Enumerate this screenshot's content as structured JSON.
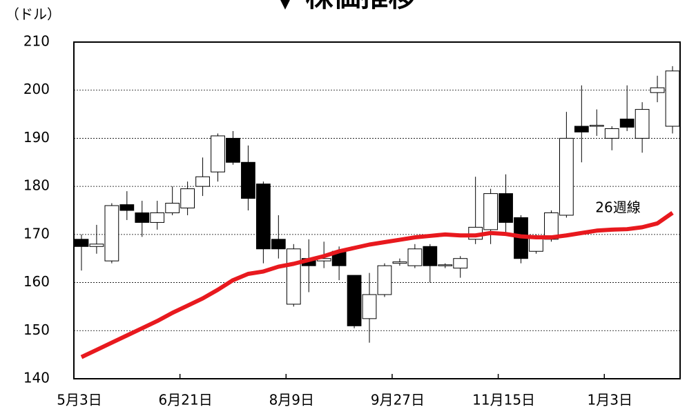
{
  "chart_data": {
    "type": "candlestick",
    "title": "▼ 株価推移",
    "y_label": "（ドル）",
    "categories": [
      "5月3日",
      null,
      null,
      null,
      null,
      null,
      null,
      "6月21日",
      null,
      null,
      null,
      null,
      null,
      null,
      "8月9日",
      null,
      null,
      null,
      null,
      null,
      null,
      "9月27日",
      null,
      null,
      null,
      null,
      null,
      null,
      "11月15日",
      null,
      null,
      null,
      null,
      null,
      null,
      "1月3日",
      null,
      null,
      null,
      null
    ],
    "open": [
      169,
      167.5,
      164.5,
      176.2,
      174.5,
      172.5,
      174.5,
      175.5,
      180,
      183,
      190,
      185,
      180.5,
      169,
      155.5,
      165,
      164.5,
      166.5,
      161.5,
      152.5,
      157.5,
      164,
      163.5,
      167.5,
      163.5,
      163,
      169,
      171,
      178.5,
      173.5,
      166.5,
      169,
      174,
      192.5,
      192.5,
      190,
      194,
      190,
      199.5,
      192.5
    ],
    "high": [
      170,
      172,
      176.5,
      179,
      177,
      177,
      180,
      181,
      186,
      191,
      191.5,
      188.5,
      181,
      174,
      168,
      169,
      168.5,
      167.5,
      161.5,
      162,
      164,
      165,
      168,
      168,
      164,
      165.5,
      182,
      179.5,
      182.5,
      174,
      170,
      175,
      195.5,
      201,
      196,
      192.5,
      201,
      197.5,
      203,
      205
    ],
    "low": [
      162.5,
      166,
      164,
      173,
      169.5,
      171,
      174,
      174,
      178,
      181,
      184.5,
      175,
      164,
      165,
      155,
      158,
      163,
      160.5,
      150.5,
      147.5,
      157,
      163.5,
      163,
      160,
      163,
      161,
      168,
      168,
      170,
      164,
      166,
      168.5,
      173.5,
      185,
      190.5,
      187.5,
      191.5,
      187,
      197.5,
      191
    ],
    "close": [
      167.5,
      168,
      176,
      175,
      172.5,
      174.5,
      176.5,
      179.5,
      182,
      190.5,
      185,
      177.5,
      167,
      167,
      167,
      163.5,
      165,
      163.5,
      151,
      157.5,
      163.5,
      164.3,
      167,
      163.5,
      163.7,
      165,
      171.5,
      178.5,
      172.5,
      165,
      169.5,
      174.5,
      190,
      191.3,
      192.7,
      192,
      192.3,
      196,
      200.5,
      204
    ],
    "up_color": "#ffffff",
    "down_color": "#000000",
    "line": {
      "name": "26週線",
      "color": "#e8191e",
      "values": [
        144.5,
        146,
        147.5,
        149,
        150.5,
        152,
        153.7,
        155.2,
        156.7,
        158.5,
        160.5,
        161.8,
        162.3,
        163.3,
        163.9,
        164.7,
        165.5,
        166.5,
        167.2,
        167.9,
        168.4,
        168.9,
        169.4,
        169.7,
        170,
        169.8,
        169.8,
        170.3,
        170.1,
        169.6,
        169.4,
        169.4,
        169.8,
        170.3,
        170.8,
        171,
        171.1,
        171.5,
        172.3,
        174.5
      ]
    },
    "ylim": [
      140,
      210
    ],
    "yticks": [
      140,
      150,
      160,
      170,
      180,
      190,
      200,
      210
    ],
    "grid": true
  }
}
